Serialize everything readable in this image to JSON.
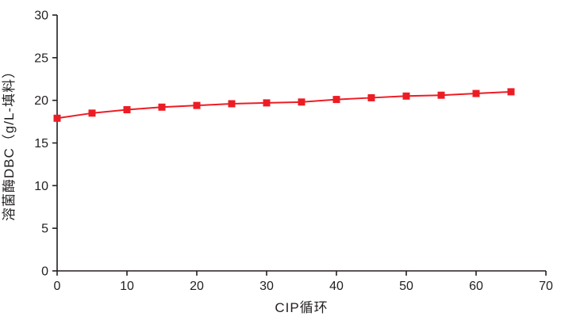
{
  "chart_data": {
    "type": "line",
    "title": "",
    "xlabel": "CIP循环",
    "ylabel": "溶菌酶DBC（g/L-填料）",
    "xlim": [
      0,
      70
    ],
    "ylim": [
      0,
      30
    ],
    "x_ticks": [
      0,
      10,
      20,
      30,
      40,
      50,
      60,
      70
    ],
    "y_ticks": [
      0,
      5,
      10,
      15,
      20,
      25,
      30
    ],
    "grid": false,
    "legend_position": "none",
    "axis_color": "#231f20",
    "background_color": "#ffffff",
    "series": [
      {
        "color": "#ed1c24",
        "marker": "square",
        "marker_size": 9,
        "line_width": 2,
        "x": [
          0,
          5,
          10,
          15,
          20,
          25,
          30,
          35,
          40,
          45,
          50,
          55,
          60,
          65
        ],
        "y": [
          17.9,
          18.5,
          18.9,
          19.2,
          19.4,
          19.6,
          19.7,
          19.8,
          20.1,
          20.3,
          20.5,
          20.6,
          20.8,
          21.0
        ]
      }
    ]
  }
}
